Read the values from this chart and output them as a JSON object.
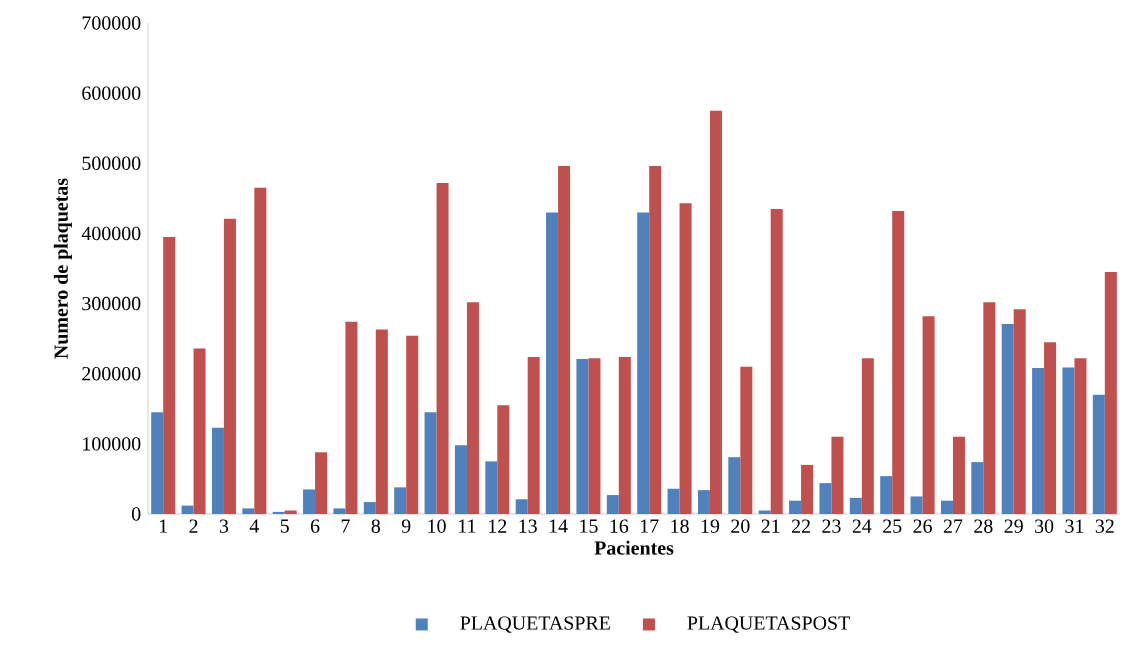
{
  "chart_data": {
    "type": "bar",
    "xlabel": "Pacientes",
    "ylabel": "Numero de plaquetas",
    "categories": [
      "1",
      "2",
      "3",
      "4",
      "5",
      "6",
      "7",
      "8",
      "9",
      "10",
      "11",
      "12",
      "13",
      "14",
      "15",
      "16",
      "17",
      "18",
      "19",
      "20",
      "21",
      "22",
      "23",
      "24",
      "25",
      "26",
      "27",
      "28",
      "29",
      "30",
      "31",
      "32"
    ],
    "series": [
      {
        "name": "PLAQUETASPRE",
        "color": "#4f81bd",
        "values": [
          145000,
          12000,
          123000,
          8000,
          3000,
          35000,
          8000,
          17000,
          38000,
          145000,
          98000,
          75000,
          21000,
          430000,
          221000,
          27000,
          430000,
          36000,
          34000,
          81000,
          5000,
          19000,
          44000,
          23000,
          54000,
          25000,
          19000,
          74000,
          271000,
          208000,
          209000,
          170000
        ]
      },
      {
        "name": "PLAQUETASPOST",
        "color": "#c0504d",
        "values": [
          395000,
          236000,
          421000,
          465000,
          5000,
          88000,
          274000,
          263000,
          254000,
          472000,
          302000,
          155000,
          224000,
          496000,
          222000,
          224000,
          496000,
          443000,
          575000,
          210000,
          435000,
          70000,
          110000,
          222000,
          432000,
          282000,
          110000,
          302000,
          292000,
          245000,
          222000,
          345000
        ]
      }
    ],
    "ylim": [
      0,
      700000
    ],
    "yticks": [
      0,
      100000,
      200000,
      300000,
      400000,
      500000,
      600000,
      700000
    ],
    "legend": "bottom",
    "grid": false
  }
}
